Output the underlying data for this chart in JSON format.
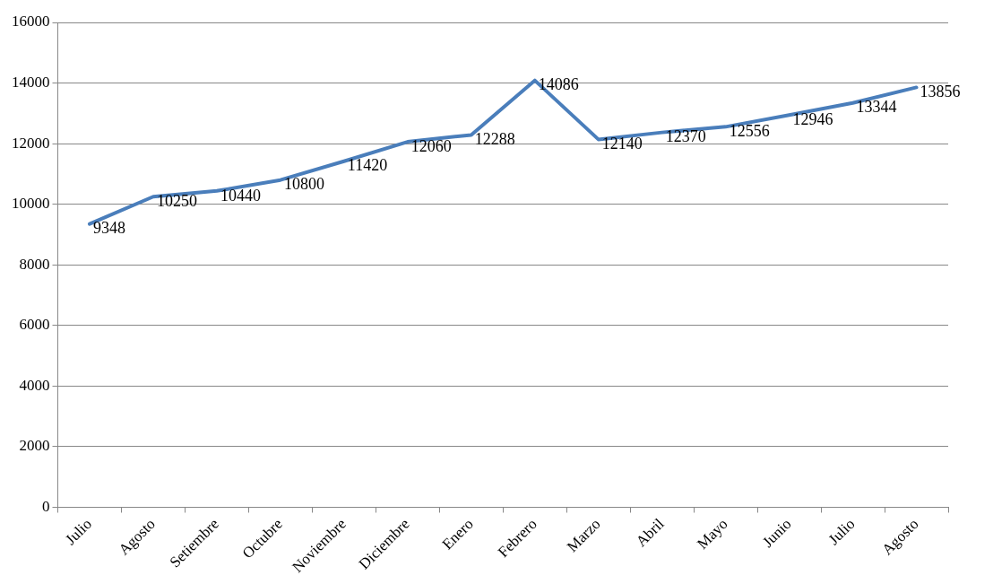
{
  "chart_data": {
    "type": "line",
    "categories": [
      "Julio",
      "Agosto",
      "Setiembre",
      "Octubre",
      "Noviembre",
      "Diciembre",
      "Enero",
      "Febrero",
      "Marzo",
      "Abril",
      "Mayo",
      "Junio",
      "Julio",
      "Agosto"
    ],
    "series": [
      {
        "color": "#4a7ebb",
        "values": [
          9348,
          10250,
          10440,
          10800,
          11420,
          12060,
          12288,
          14086,
          12140,
          12370,
          12556,
          12946,
          13344,
          13856
        ]
      }
    ],
    "ylim": [
      0,
      16000
    ],
    "yticks": [
      0,
      2000,
      4000,
      6000,
      8000,
      10000,
      12000,
      14000,
      16000
    ],
    "grid": "y",
    "legend": false,
    "marker": "none",
    "line_style": "solid",
    "data_labels": true
  }
}
